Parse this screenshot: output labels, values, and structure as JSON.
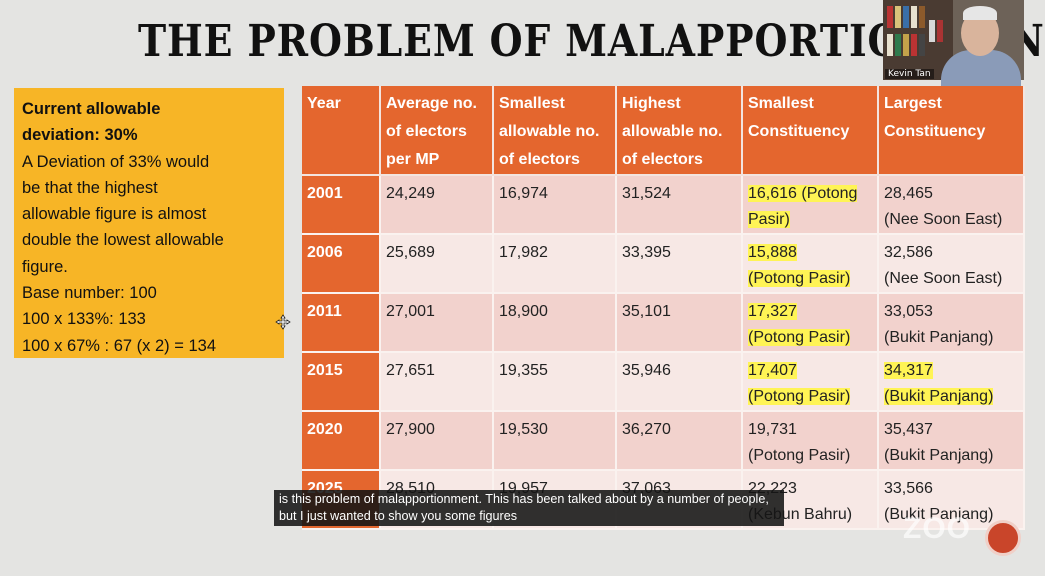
{
  "slide": {
    "title": "THE PROBLEM OF MALAPPORTIONMEN",
    "note_lines": [
      {
        "text": "Current allowable",
        "bold": true
      },
      {
        "text": "deviation: 30%",
        "bold": true
      },
      {
        "text": "A Deviation of 33% would",
        "bold": false
      },
      {
        "text": "be that the highest",
        "bold": false
      },
      {
        "text": "allowable figure is almost",
        "bold": false
      },
      {
        "text": "double the lowest allowable",
        "bold": false
      },
      {
        "text": "figure.",
        "bold": false
      },
      {
        "text": "Base number: 100",
        "bold": false
      },
      {
        "text": "100 x 133%: 133",
        "bold": false
      },
      {
        "text": "100 x 67% : 67 (x 2) = 134",
        "bold": false
      }
    ],
    "table": {
      "headers": [
        [
          "Year"
        ],
        [
          "Average no.",
          "of electors",
          "per MP"
        ],
        [
          "Smallest",
          "allowable no.",
          "of electors"
        ],
        [
          "Highest",
          "allowable no.",
          "of electors"
        ],
        [
          "Smallest",
          "Constituency"
        ],
        [
          "Largest",
          "Constituency"
        ]
      ],
      "rows": [
        {
          "year": "2001",
          "average": "24,249",
          "smallest_allowable": "16,974",
          "highest_allowable": "31,524",
          "smallest_constituency": [
            "16,616 (Potong",
            "Pasir)"
          ],
          "smallest_highlight": true,
          "largest_constituency": [
            "28,465",
            "(Nee Soon East)"
          ],
          "largest_highlight": false
        },
        {
          "year": "2006",
          "average": "25,689",
          "smallest_allowable": "17,982",
          "highest_allowable": "33,395",
          "smallest_constituency": [
            "15,888",
            "(Potong Pasir)"
          ],
          "smallest_highlight": true,
          "largest_constituency": [
            "32,586",
            "(Nee Soon East)"
          ],
          "largest_highlight": false
        },
        {
          "year": "2011",
          "average": "27,001",
          "smallest_allowable": "18,900",
          "highest_allowable": "35,101",
          "smallest_constituency": [
            "17,327",
            "(Potong Pasir)"
          ],
          "smallest_highlight": true,
          "largest_constituency": [
            "33,053",
            "(Bukit Panjang)"
          ],
          "largest_highlight": false
        },
        {
          "year": "2015",
          "average": "27,651",
          "smallest_allowable": "19,355",
          "highest_allowable": "35,946",
          "smallest_constituency": [
            "17,407",
            "(Potong Pasir)"
          ],
          "smallest_highlight": true,
          "largest_constituency": [
            "34,317",
            "(Bukit Panjang)"
          ],
          "largest_highlight": true
        },
        {
          "year": "2020",
          "average": "27,900",
          "smallest_allowable": "19,530",
          "highest_allowable": "36,270",
          "smallest_constituency": [
            "19,731",
            "(Potong Pasir)"
          ],
          "smallest_highlight": false,
          "largest_constituency": [
            "35,437",
            "(Bukit Panjang)"
          ],
          "largest_highlight": false
        },
        {
          "year": "2025",
          "average": "28,510",
          "smallest_allowable": "19,957",
          "highest_allowable": "37,063",
          "smallest_constituency": [
            "22,223",
            "(Kebun Bahru)"
          ],
          "smallest_highlight": false,
          "largest_constituency": [
            "33,566",
            "(Bukit Panjang)"
          ],
          "largest_highlight": false
        }
      ]
    }
  },
  "video": {
    "participant_name": "Kevin Tan"
  },
  "caption": {
    "text": "is this problem of malapportionment. This has been talked about by a number of people, but I just wanted to show you some figures"
  },
  "watermark": {
    "text": "ZOO"
  },
  "colors": {
    "header": "#e4662e",
    "note_box": "#f7b526",
    "highlight": "#fff455"
  }
}
